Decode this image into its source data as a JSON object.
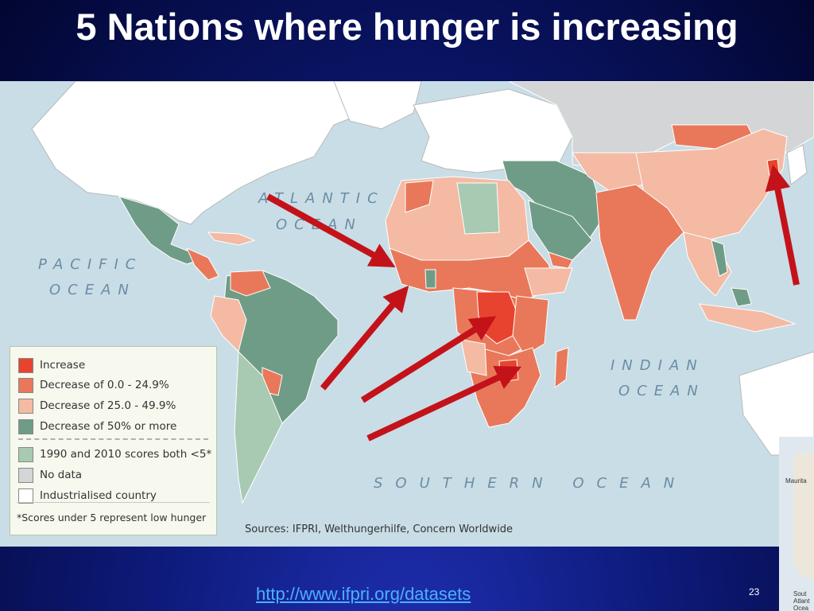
{
  "title": "5 Nations where hunger is increasing",
  "map": {
    "ocean_labels": {
      "atlantic": [
        "ATLANTIC",
        "OCEAN"
      ],
      "pacific": [
        "PACIFIC",
        "OCEAN"
      ],
      "indian": [
        "INDIAN",
        "OCEAN"
      ],
      "southern": "SOUTHERN OCEAN"
    },
    "colors": {
      "ocean": "#c9dde6",
      "increase": "#e8432e",
      "decrease_0_24": "#e9785a",
      "decrease_25_49": "#f4baa3",
      "decrease_50_plus": "#6f9c87",
      "low_both": "#a8c9b2",
      "no_data": "#d4d5d7",
      "industrialised": "#ffffff",
      "arrow": "#c4121a"
    },
    "legend": {
      "items": [
        {
          "label": "Increase",
          "color": "#e8432e"
        },
        {
          "label": "Decrease of 0.0 - 24.9%",
          "color": "#e9785a"
        },
        {
          "label": "Decrease of 25.0 - 49.9%",
          "color": "#f4baa3"
        },
        {
          "label": "Decrease of 50% or more",
          "color": "#6f9c87"
        },
        {
          "label": "1990 and 2010 scores both <5*",
          "color": "#a8c9b2"
        },
        {
          "label": "No data",
          "color": "#d4d5d7"
        },
        {
          "label": "Industrialised country",
          "color": "#ffffff"
        }
      ],
      "note": "*Scores under 5 represent low hunger"
    },
    "sources": "Sources: IFPRI, Welthungerhilfe, Concern Worldwide",
    "inset_labels": [
      "Maurita",
      "Sout",
      "Atlant",
      "Ocea"
    ]
  },
  "footer": {
    "page_number": "23",
    "link": "http://www.ifpri.org/datasets"
  }
}
